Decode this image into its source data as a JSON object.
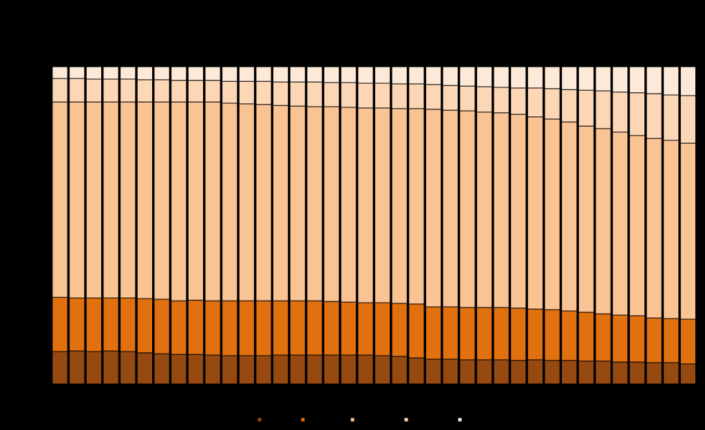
{
  "chart_data": {
    "type": "stacked_bar",
    "categories": [
      null,
      null,
      null,
      null,
      null,
      null,
      null,
      null,
      null,
      null,
      null,
      null,
      null,
      null,
      null,
      null,
      null,
      null,
      null,
      null,
      null,
      null,
      null,
      null,
      null,
      null,
      null,
      null,
      null,
      null,
      null,
      null,
      null,
      null,
      null,
      null,
      null,
      null
    ],
    "ylim": [
      0,
      100
    ],
    "series": [
      {
        "color": "#964a12",
        "values": [
          10.2,
          10.4,
          10.2,
          10.4,
          10.2,
          9.8,
          9.5,
          9.3,
          9.3,
          9.1,
          8.9,
          8.9,
          8.9,
          9.1,
          9.1,
          9.1,
          9.1,
          9.1,
          9.1,
          8.9,
          8.7,
          8.2,
          7.8,
          7.8,
          7.6,
          7.6,
          7.6,
          7.4,
          7.6,
          7.4,
          7.4,
          7.2,
          7.2,
          6.9,
          6.9,
          6.7,
          6.7,
          6.3
        ]
      },
      {
        "color": "#e1700f",
        "values": [
          17.1,
          16.7,
          16.9,
          16.7,
          16.9,
          17.1,
          17.2,
          16.9,
          17.1,
          17.1,
          17.3,
          17.3,
          17.3,
          17.1,
          17.1,
          17.1,
          16.9,
          16.7,
          16.5,
          16.7,
          16.7,
          17.0,
          16.5,
          16.5,
          16.5,
          16.5,
          16.5,
          16.5,
          16.0,
          16.0,
          15.6,
          15.4,
          14.9,
          14.8,
          14.6,
          14.1,
          13.9,
          14.1
        ]
      },
      {
        "color": "#f9c394",
        "values": [
          61.6,
          61.8,
          61.8,
          61.8,
          61.8,
          62.0,
          62.2,
          62.7,
          62.5,
          62.7,
          62.3,
          62.1,
          61.9,
          61.6,
          61.4,
          61.2,
          61.4,
          61.4,
          61.4,
          61.4,
          61.4,
          61.6,
          62.3,
          62.0,
          62.0,
          61.6,
          61.4,
          61.1,
          60.6,
          60.1,
          59.6,
          58.7,
          58.4,
          57.7,
          56.8,
          56.6,
          56.2,
          55.5
        ]
      },
      {
        "color": "#fcd7b6",
        "values": [
          7.4,
          7.4,
          7.2,
          7.2,
          7.2,
          7.0,
          7.0,
          6.8,
          6.8,
          6.8,
          6.9,
          7.1,
          7.3,
          7.4,
          7.6,
          7.8,
          7.6,
          7.8,
          7.8,
          7.8,
          7.8,
          7.8,
          7.8,
          7.8,
          7.8,
          8.0,
          8.0,
          8.3,
          9.1,
          9.6,
          10.2,
          11.3,
          11.9,
          12.6,
          13.5,
          14.1,
          14.3,
          15.0
        ]
      },
      {
        "color": "#fde9d7",
        "values": [
          3.7,
          3.7,
          3.9,
          3.9,
          3.9,
          4.1,
          4.1,
          4.3,
          4.3,
          4.3,
          4.6,
          4.6,
          4.6,
          4.8,
          4.8,
          4.8,
          5.0,
          5.0,
          5.2,
          5.2,
          5.4,
          5.4,
          5.6,
          5.9,
          6.1,
          6.3,
          6.5,
          6.7,
          6.7,
          6.9,
          7.2,
          7.4,
          7.6,
          8.0,
          8.2,
          8.5,
          8.9,
          9.1
        ]
      }
    ]
  }
}
